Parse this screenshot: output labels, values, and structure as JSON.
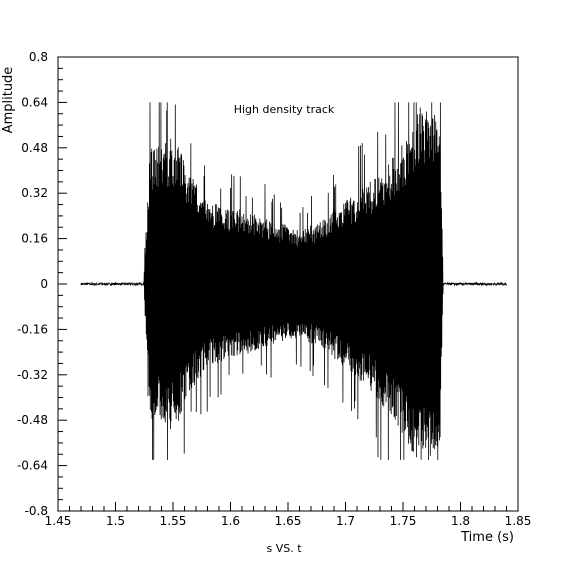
{
  "chart_data": {
    "type": "line",
    "title": "",
    "annotation": "High density track",
    "xlabel": "Time (s)",
    "ylabel": "Amplitude",
    "footer": "s VS. t",
    "xlim": [
      1.45,
      1.85
    ],
    "ylim": [
      -0.8,
      0.8
    ],
    "x_ticks": [
      1.45,
      1.5,
      1.55,
      1.6,
      1.65,
      1.7,
      1.75,
      1.8,
      1.85
    ],
    "x_tick_labels": [
      "1.45",
      "1.5",
      "1.55",
      "1.6",
      "1.65",
      "1.7",
      "1.75",
      "1.8",
      "1.85"
    ],
    "y_ticks": [
      -0.8,
      -0.64,
      -0.48,
      -0.32,
      -0.16,
      0,
      0.16,
      0.32,
      0.48,
      0.64,
      0.8
    ],
    "y_tick_labels": [
      "-0.8",
      "-0.64",
      "-0.48",
      "-0.32",
      "-0.16",
      "0",
      "0.16",
      "0.32",
      "0.48",
      "0.64",
      "0.8"
    ],
    "grid": false,
    "legend": "none",
    "series": [
      {
        "color": "#000000",
        "signal_start": 1.47,
        "signal_end": 1.84,
        "burst_start": 1.525,
        "burst_end": 1.785,
        "envelope_upper": {
          "x": [
            1.525,
            1.53,
            1.54,
            1.548,
            1.555,
            1.565,
            1.58,
            1.6,
            1.62,
            1.64,
            1.66,
            1.68,
            1.7,
            1.72,
            1.74,
            1.755,
            1.765,
            1.775,
            1.782,
            1.785
          ],
          "y": [
            0.05,
            0.46,
            0.47,
            0.49,
            0.47,
            0.37,
            0.28,
            0.26,
            0.24,
            0.21,
            0.18,
            0.22,
            0.28,
            0.34,
            0.42,
            0.5,
            0.6,
            0.62,
            0.58,
            0.0
          ]
        },
        "envelope_lower": {
          "x": [
            1.525,
            1.53,
            1.54,
            1.548,
            1.555,
            1.565,
            1.58,
            1.6,
            1.62,
            1.64,
            1.66,
            1.68,
            1.7,
            1.72,
            1.74,
            1.755,
            1.765,
            1.775,
            1.782,
            1.785
          ],
          "y": [
            -0.05,
            -0.45,
            -0.47,
            -0.49,
            -0.46,
            -0.36,
            -0.28,
            -0.25,
            -0.23,
            -0.2,
            -0.18,
            -0.22,
            -0.28,
            -0.35,
            -0.45,
            -0.55,
            -0.6,
            -0.6,
            -0.58,
            0.0
          ]
        },
        "peak_max": 0.64,
        "peak_min": -0.62,
        "baseline_noise": 0.004
      }
    ]
  }
}
